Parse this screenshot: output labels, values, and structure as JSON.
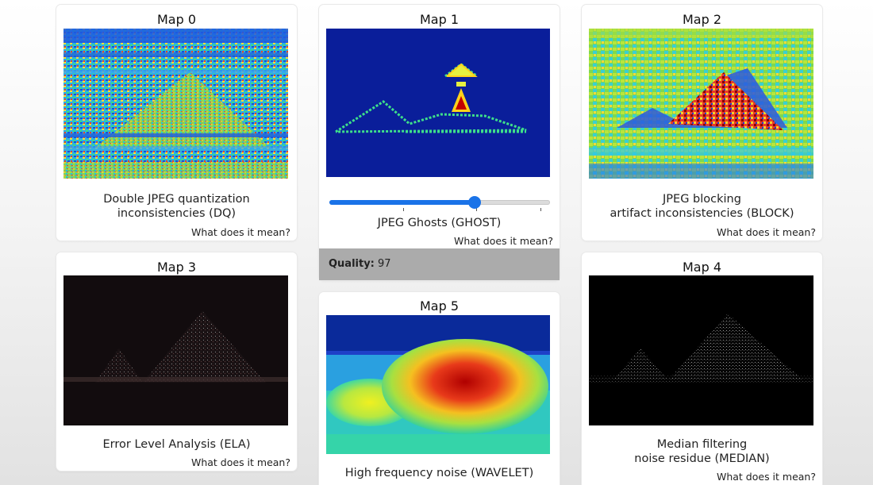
{
  "maps": [
    {
      "id": 0,
      "title": "Map 0",
      "line1": "Double JPEG quantization",
      "line2": "inconsistencies (DQ)",
      "help": "What does it mean?"
    },
    {
      "id": 1,
      "title": "Map 1",
      "line1": "JPEG Ghosts (GHOST)",
      "line2": "",
      "help": "What does it mean?",
      "slider_value_fraction": 0.66,
      "quality_label": "Quality:",
      "quality_value": "97"
    },
    {
      "id": 2,
      "title": "Map 2",
      "line1": "JPEG blocking",
      "line2": "artifact inconsistencies (BLOCK)",
      "help": "What does it mean?"
    },
    {
      "id": 3,
      "title": "Map 3",
      "line1": "Error Level Analysis (ELA)",
      "line2": "",
      "help": "What does it mean?"
    },
    {
      "id": 4,
      "title": "Map 4",
      "line1": "Median filtering",
      "line2": "noise residue (MEDIAN)",
      "help": "What does it mean?"
    },
    {
      "id": 5,
      "title": "Map 5",
      "line1": "High frequency noise (WAVELET)",
      "line2": ""
    }
  ],
  "colors": {
    "slider_accent": "#1a73e8",
    "quality_bg": "#ababab",
    "heatmap_low": "#0a1e9a",
    "heatmap_high": "#c40000"
  }
}
